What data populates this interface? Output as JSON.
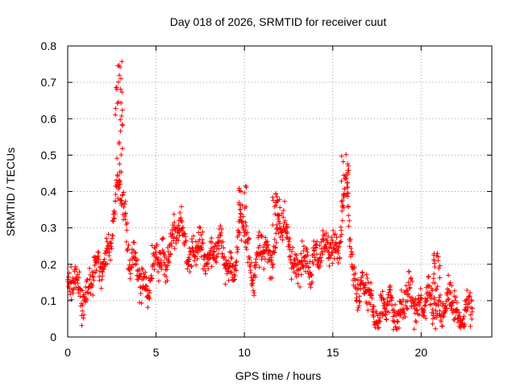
{
  "chart_data": {
    "type": "scatter",
    "title": "Day 018 of 2026, SRMTID for receiver cuut",
    "xlabel": "GPS time / hours",
    "ylabel": "SRMTID / TECUs",
    "xlim": [
      0,
      24
    ],
    "ylim": [
      0,
      0.8
    ],
    "x_ticks": [
      0,
      5,
      10,
      15,
      20
    ],
    "x_tick_labels": [
      "0",
      "5",
      "10",
      "15",
      "20"
    ],
    "y_ticks": [
      0,
      0.1,
      0.2,
      0.3,
      0.4,
      0.5,
      0.6,
      0.7,
      0.8
    ],
    "y_tick_labels": [
      "0",
      "0.1",
      "0.2",
      "0.3",
      "0.4",
      "0.5",
      "0.6",
      "0.7",
      "0.8"
    ],
    "grid": true,
    "marker": "+",
    "series_color": "#ff0000",
    "x_range_of_data": [
      0,
      22.9
    ],
    "trend": {
      "x": [
        0,
        0.5,
        1,
        1.5,
        2,
        2.5,
        2.8,
        3,
        3.2,
        3.5,
        4,
        4.5,
        5,
        5.5,
        6,
        6.5,
        7,
        7.5,
        8,
        8.5,
        9,
        9.5,
        9.9,
        10.5,
        11,
        11.5,
        12,
        12.5,
        13,
        13.5,
        14,
        14.5,
        15,
        15.5,
        15.8,
        16,
        16.5,
        17,
        17.5,
        18,
        18.5,
        19,
        19.5,
        20,
        20.5,
        21,
        21.5,
        22,
        22.5,
        22.9
      ],
      "y": [
        0.13,
        0.14,
        0.12,
        0.15,
        0.22,
        0.26,
        0.38,
        0.42,
        0.35,
        0.22,
        0.15,
        0.16,
        0.19,
        0.22,
        0.27,
        0.28,
        0.24,
        0.22,
        0.24,
        0.23,
        0.22,
        0.2,
        0.3,
        0.2,
        0.22,
        0.24,
        0.3,
        0.26,
        0.2,
        0.18,
        0.24,
        0.22,
        0.26,
        0.27,
        0.42,
        0.22,
        0.13,
        0.1,
        0.08,
        0.07,
        0.08,
        0.08,
        0.1,
        0.1,
        0.09,
        0.1,
        0.08,
        0.08,
        0.07,
        0.07
      ]
    },
    "spread": 0.045,
    "peaks": [
      {
        "x": 2.9,
        "y_max": 0.76
      },
      {
        "x": 15.7,
        "y_max": 0.51
      },
      {
        "x": 9.9,
        "y_max": 0.42
      },
      {
        "x": 11.8,
        "y_max": 0.4
      },
      {
        "x": 20.9,
        "y_max": 0.23
      }
    ]
  }
}
